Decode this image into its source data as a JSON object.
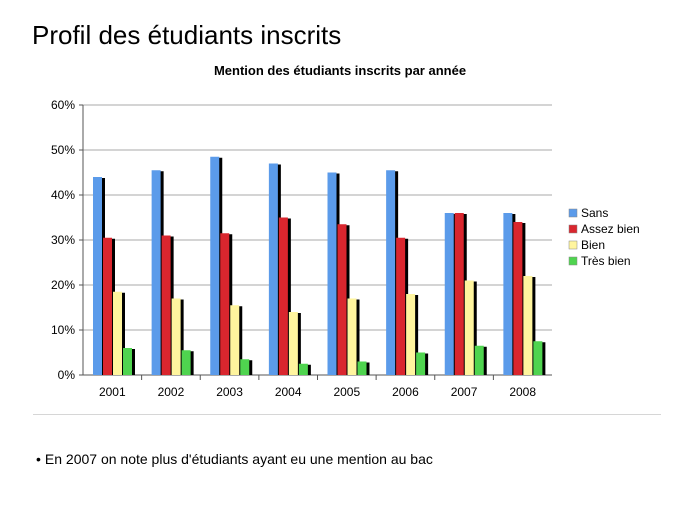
{
  "slide": {
    "title": "Profil des étudiants inscrits",
    "bullet": "En 2007 on note plus d'étudiants ayant eu une mention au bac"
  },
  "chart_data": {
    "type": "bar",
    "title": "Mention des étudiants inscrits par année",
    "xlabel": "",
    "ylabel": "",
    "categories": [
      "2001",
      "2002",
      "2003",
      "2004",
      "2005",
      "2006",
      "2007",
      "2008"
    ],
    "ylim": [
      0,
      60
    ],
    "yticks": [
      "0%",
      "10%",
      "20%",
      "30%",
      "40%",
      "50%",
      "60%"
    ],
    "grid": true,
    "legend": "right",
    "series": [
      {
        "name": "Sans",
        "color": "#5b9bea",
        "values": [
          44,
          45.5,
          48.5,
          47,
          45,
          45.5,
          36,
          36
        ]
      },
      {
        "name": "Assez bien",
        "color": "#d9262e",
        "values": [
          30.5,
          31,
          31.5,
          35,
          33.5,
          30.5,
          36,
          34
        ]
      },
      {
        "name": "Bien",
        "color": "#fff59e",
        "values": [
          18.5,
          17,
          15.5,
          14,
          17,
          18,
          21,
          22
        ]
      },
      {
        "name": "Très bien",
        "color": "#4fd44f",
        "values": [
          6,
          5.5,
          3.5,
          2.5,
          3,
          5,
          6.5,
          7.5
        ]
      }
    ]
  }
}
